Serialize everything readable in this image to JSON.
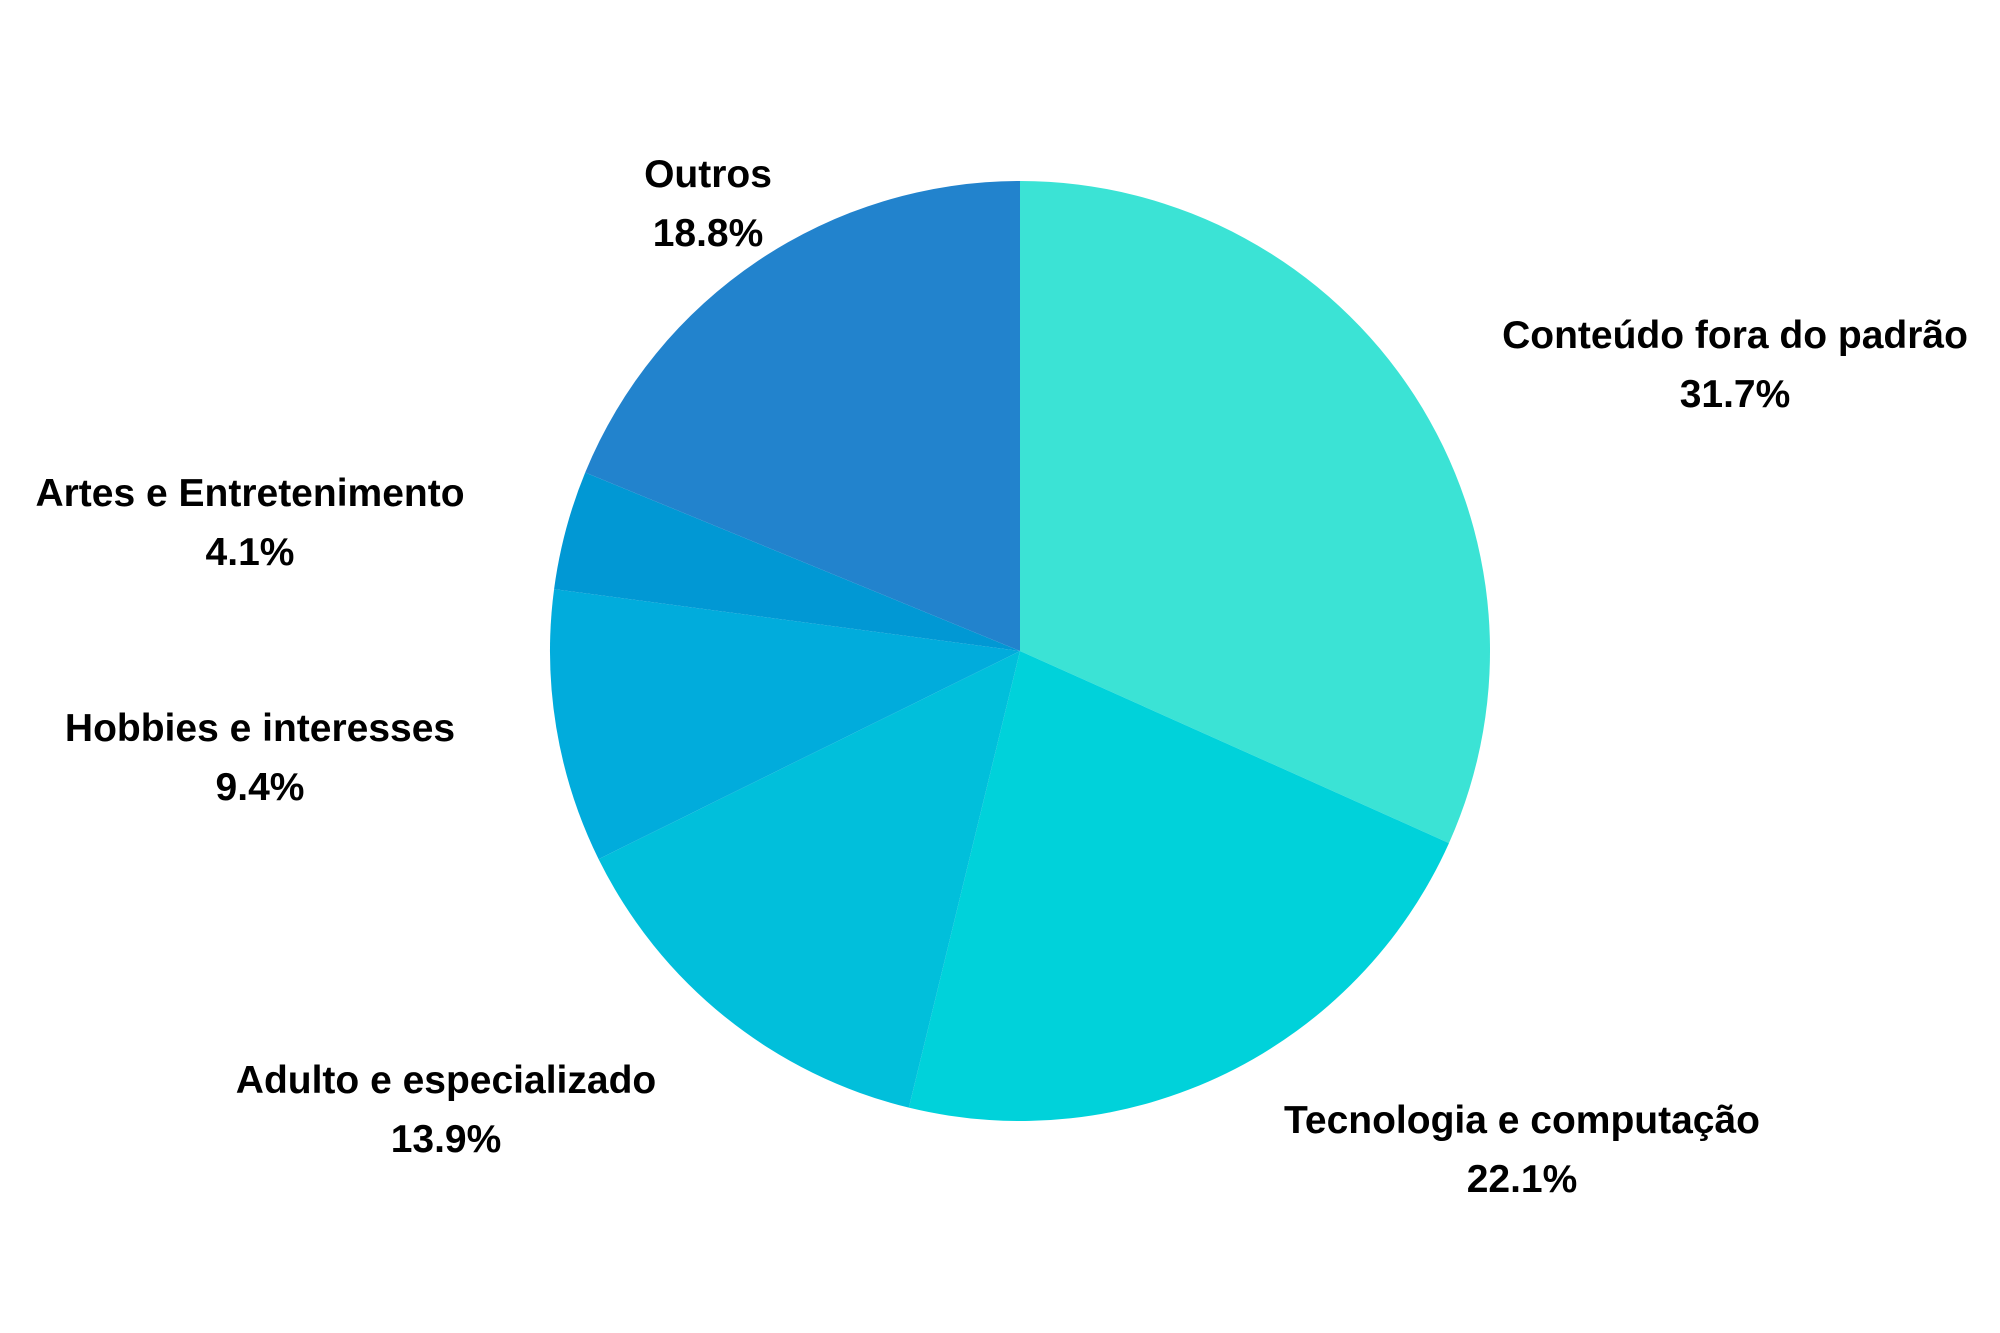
{
  "chart_data": {
    "type": "pie",
    "title": "",
    "start_angle_deg": 0,
    "direction": "clockwise",
    "slices": [
      {
        "label": "Conteúdo fora do padrão",
        "value": 31.7,
        "value_label": "31.7%",
        "color": "#3BE3D5"
      },
      {
        "label": "Tecnologia e computação",
        "value": 22.1,
        "value_label": "22.1%",
        "color": "#00D2DA"
      },
      {
        "label": "Adulto e especializado",
        "value": 13.9,
        "value_label": "13.9%",
        "color": "#01BFDB"
      },
      {
        "label": "Hobbies e interesses",
        "value": 9.4,
        "value_label": "9.4%",
        "color": "#01ACDC"
      },
      {
        "label": "Artes e Entretenimento",
        "value": 4.1,
        "value_label": "4.1%",
        "color": "#0198D4"
      },
      {
        "label": "Outros",
        "value": 18.8,
        "value_label": "18.8%",
        "color": "#2283CD"
      }
    ],
    "legend": "none",
    "labels": "outside"
  }
}
